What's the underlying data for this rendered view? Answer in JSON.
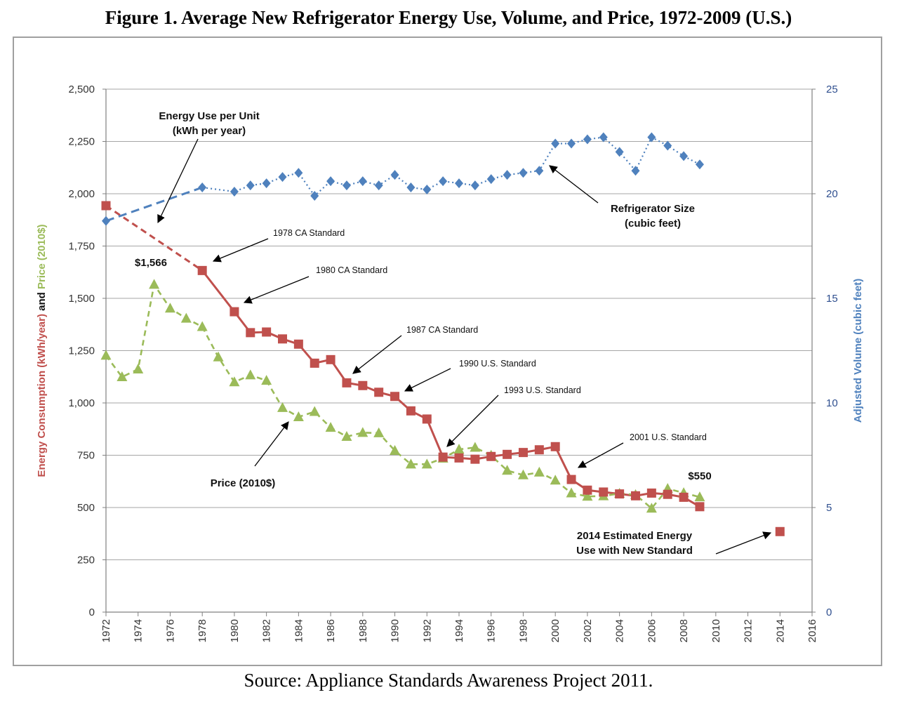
{
  "title": "Figure 1. Average New Refrigerator Energy Use, Volume, and Price, 1972-2009 (U.S.)",
  "source": "Source: Appliance Standards Awareness Project 2011.",
  "colors": {
    "energy": "#c0504d",
    "price": "#9bbb59",
    "size": "#4f81bd",
    "grid": "#a6a6a6",
    "axis": "#808080"
  },
  "chart_data": {
    "type": "line",
    "x_ticks": [
      1972,
      1974,
      1976,
      1978,
      1980,
      1982,
      1984,
      1986,
      1988,
      1990,
      1992,
      1994,
      1996,
      1998,
      2000,
      2002,
      2004,
      2006,
      2008,
      2010,
      2012,
      2014,
      2016
    ],
    "xlim": [
      1972,
      2016
    ],
    "ylim": [
      0,
      2500
    ],
    "y_ticks": [
      0,
      250,
      500,
      750,
      1000,
      1250,
      1500,
      1750,
      2000,
      2250,
      2500
    ],
    "y_tick_labels": [
      "0",
      "250",
      "500",
      "750",
      "1,000",
      "1,250",
      "1,500",
      "1,750",
      "2,000",
      "2,250",
      "2,500"
    ],
    "y2lim": [
      0,
      25
    ],
    "y2_ticks": [
      0,
      5,
      10,
      15,
      20,
      25
    ],
    "y2_tick_labels": [
      "0",
      "5",
      "10",
      "15",
      "20",
      "25"
    ],
    "ylabel_parts": [
      {
        "text": "Energy Consumption (kWh/year)",
        "series": "energy"
      },
      {
        "text": " and ",
        "series": "black"
      },
      {
        "text": "Price (2010$)",
        "series": "price"
      }
    ],
    "y2label": "Adjusted Volume (cubic feet)",
    "series": [
      {
        "name": "Energy Use per Unit (kWh per year)",
        "key": "energy",
        "axis": "left",
        "points": [
          [
            1972,
            1943
          ],
          [
            1978,
            1633
          ],
          [
            1980,
            1436
          ],
          [
            1981,
            1336
          ],
          [
            1982,
            1339
          ],
          [
            1983,
            1306
          ],
          [
            1984,
            1281
          ],
          [
            1985,
            1190
          ],
          [
            1986,
            1207
          ],
          [
            1987,
            1096
          ],
          [
            1988,
            1083
          ],
          [
            1989,
            1051
          ],
          [
            1990,
            1031
          ],
          [
            1991,
            962
          ],
          [
            1992,
            923
          ],
          [
            1993,
            741
          ],
          [
            1994,
            737
          ],
          [
            1995,
            731
          ],
          [
            1996,
            744
          ],
          [
            1997,
            754
          ],
          [
            1998,
            763
          ],
          [
            1999,
            776
          ],
          [
            2000,
            791
          ],
          [
            2001,
            634
          ],
          [
            2002,
            583
          ],
          [
            2003,
            574
          ],
          [
            2004,
            565
          ],
          [
            2005,
            556
          ],
          [
            2006,
            569
          ],
          [
            2007,
            563
          ],
          [
            2008,
            549
          ],
          [
            2009,
            504
          ]
        ],
        "dashed_until": 1978
      },
      {
        "name": "Price (2010$)",
        "key": "price",
        "axis": "left",
        "points": [
          [
            1972,
            1227
          ],
          [
            1973,
            1124
          ],
          [
            1974,
            1161
          ],
          [
            1975,
            1566
          ],
          [
            1976,
            1452
          ],
          [
            1977,
            1404
          ],
          [
            1978,
            1364
          ],
          [
            1979,
            1219
          ],
          [
            1980,
            1100
          ],
          [
            1981,
            1133
          ],
          [
            1982,
            1107
          ],
          [
            1983,
            977
          ],
          [
            1984,
            933
          ],
          [
            1985,
            958
          ],
          [
            1986,
            882
          ],
          [
            1987,
            839
          ],
          [
            1988,
            858
          ],
          [
            1989,
            856
          ],
          [
            1990,
            772
          ],
          [
            1991,
            707
          ],
          [
            1992,
            707
          ],
          [
            1993,
            735
          ],
          [
            1994,
            778
          ],
          [
            1995,
            787
          ],
          [
            1996,
            749
          ],
          [
            1997,
            677
          ],
          [
            1998,
            655
          ],
          [
            1999,
            668
          ],
          [
            2000,
            630
          ],
          [
            2001,
            569
          ],
          [
            2002,
            553
          ],
          [
            2003,
            555
          ],
          [
            2004,
            567
          ],
          [
            2005,
            561
          ],
          [
            2006,
            496
          ],
          [
            2007,
            590
          ],
          [
            2008,
            570
          ],
          [
            2009,
            550
          ]
        ]
      },
      {
        "name": "Refrigerator Size (cubic feet)",
        "key": "size",
        "axis": "right",
        "points": [
          [
            1972,
            18.7
          ],
          [
            1978,
            20.3
          ],
          [
            1980,
            20.1
          ],
          [
            1981,
            20.4
          ],
          [
            1982,
            20.5
          ],
          [
            1983,
            20.8
          ],
          [
            1984,
            21.0
          ],
          [
            1985,
            19.9
          ],
          [
            1986,
            20.6
          ],
          [
            1987,
            20.4
          ],
          [
            1988,
            20.6
          ],
          [
            1989,
            20.4
          ],
          [
            1990,
            20.9
          ],
          [
            1991,
            20.3
          ],
          [
            1992,
            20.2
          ],
          [
            1993,
            20.6
          ],
          [
            1994,
            20.5
          ],
          [
            1995,
            20.4
          ],
          [
            1996,
            20.7
          ],
          [
            1997,
            20.9
          ],
          [
            1998,
            21.0
          ],
          [
            1999,
            21.1
          ],
          [
            2000,
            22.4
          ],
          [
            2001,
            22.4
          ],
          [
            2002,
            22.6
          ],
          [
            2003,
            22.7
          ],
          [
            2004,
            22.0
          ],
          [
            2005,
            21.1
          ],
          [
            2006,
            22.7
          ],
          [
            2007,
            22.3
          ],
          [
            2008,
            21.8
          ],
          [
            2009,
            21.4
          ]
        ]
      },
      {
        "name": "2014 Estimated Energy Use with New Standard",
        "key": "estimate",
        "axis": "left",
        "points": [
          [
            2014,
            385
          ]
        ]
      }
    ],
    "annotations": {
      "energy_label": [
        "Energy Use per Unit",
        "(kWh per year)"
      ],
      "size_label": [
        "Refrigerator Size",
        "(cubic feet)"
      ],
      "price_label": "Price (2010$)",
      "price_1975": "$1,566",
      "price_2009": "$550",
      "estimate_label": [
        "2014 Estimated Energy",
        "Use with New Standard"
      ],
      "standards": [
        "1978 CA Standard",
        "1980 CA Standard",
        "1987 CA Standard",
        "1990 U.S. Standard",
        "1993 U.S. Standard",
        "2001 U.S. Standard"
      ]
    }
  }
}
